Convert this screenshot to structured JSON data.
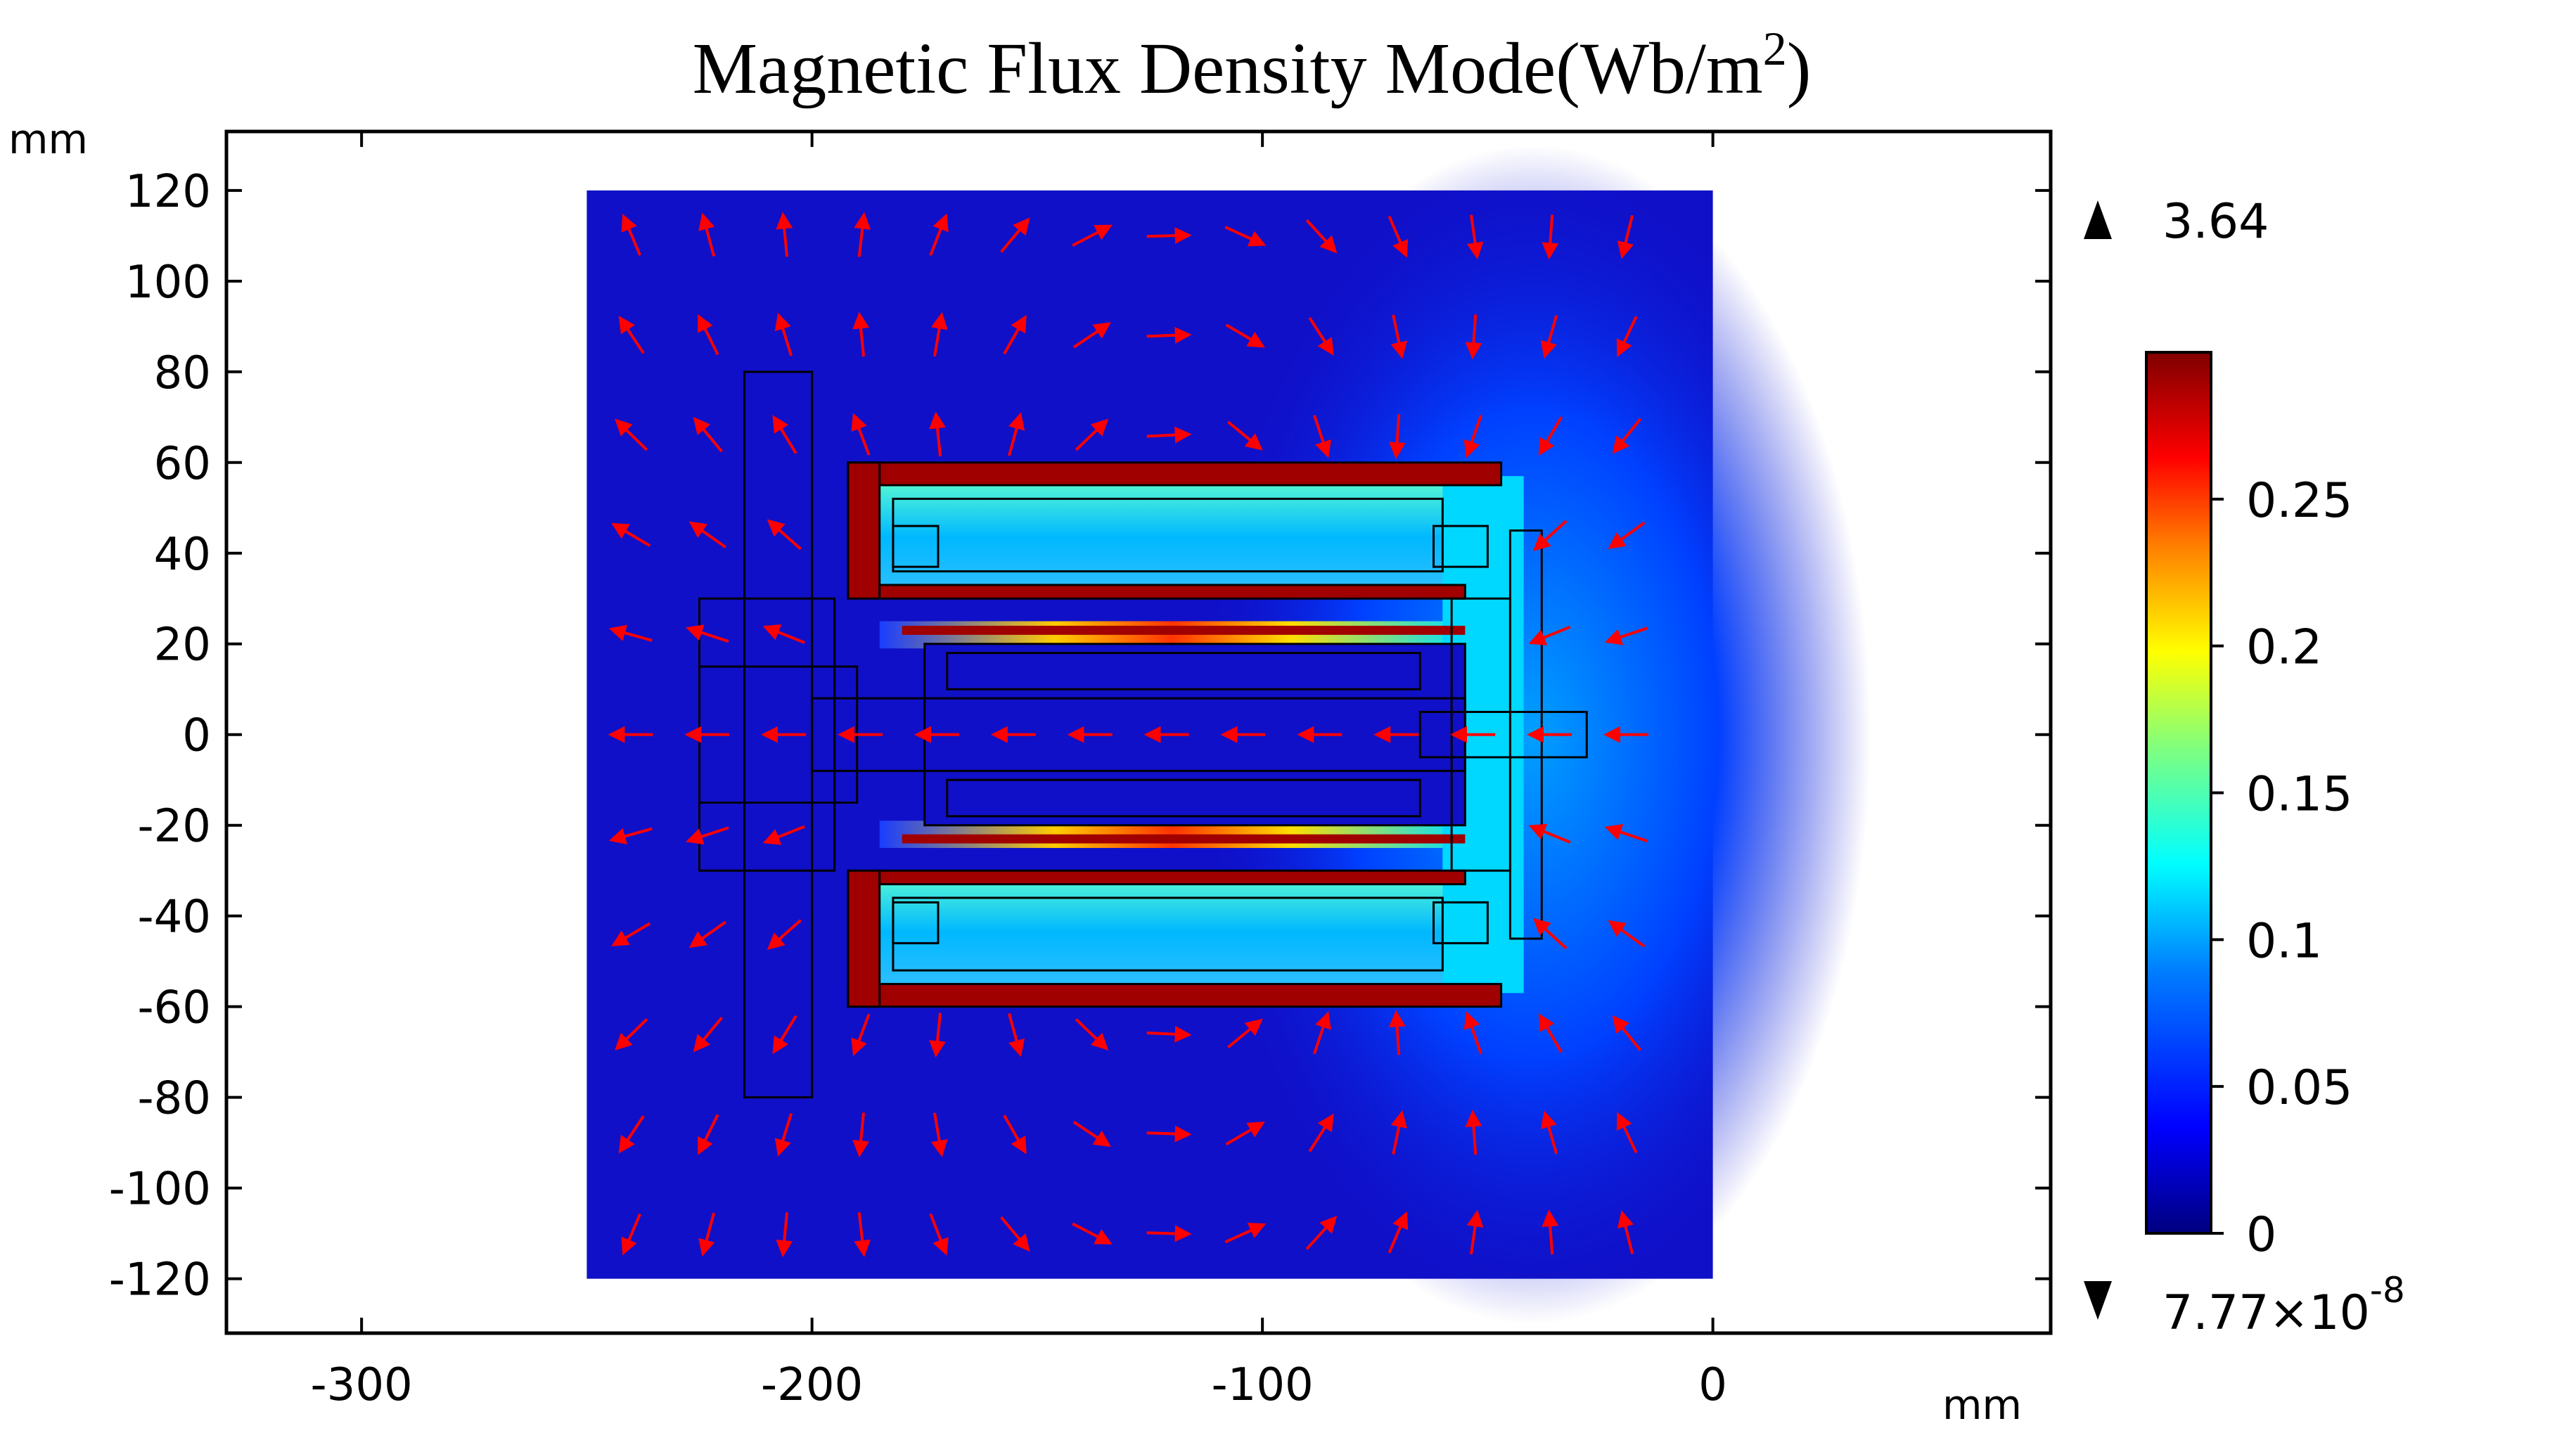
{
  "chart_data": {
    "type": "heatmap",
    "title": "Magnetic Flux Density Mode(Wb/m",
    "title_superscript": "2",
    "title_close": ")",
    "x_unit": "mm",
    "y_unit": "mm",
    "xlim": [
      -330,
      75
    ],
    "ylim": [
      -132,
      133
    ],
    "x_ticks": [
      -300,
      -200,
      -100,
      0
    ],
    "x_tick_labels": [
      "-300",
      "-200",
      "-100",
      "0"
    ],
    "y_ticks": [
      120,
      100,
      80,
      60,
      40,
      20,
      0,
      -20,
      -40,
      -60,
      -80,
      -100,
      -120
    ],
    "y_tick_labels": [
      "120",
      "100",
      "80",
      "60",
      "40",
      "20",
      "0",
      "-20",
      "-40",
      "-60",
      "-80",
      "-100",
      "-120"
    ],
    "domain": {
      "x": [
        -250,
        0
      ],
      "y": [
        -120,
        120
      ]
    },
    "colorbar": {
      "range": [
        0,
        0.3
      ],
      "ticks": [
        0.25,
        0.2,
        0.15,
        0.1,
        0.05,
        0
      ],
      "tick_labels": [
        "0.25",
        "0.2",
        "0.15",
        "0.1",
        "0.05",
        "0"
      ],
      "max_label": "3.64",
      "min_label_base": "7.77×10",
      "min_label_exp": "-8",
      "colormap": [
        "#00007f",
        "#0000ff",
        "#007fff",
        "#00ffff",
        "#7fff7f",
        "#ffff00",
        "#ff7f00",
        "#ff0000",
        "#7f0000"
      ]
    },
    "arrow_color": "#ff0000"
  }
}
